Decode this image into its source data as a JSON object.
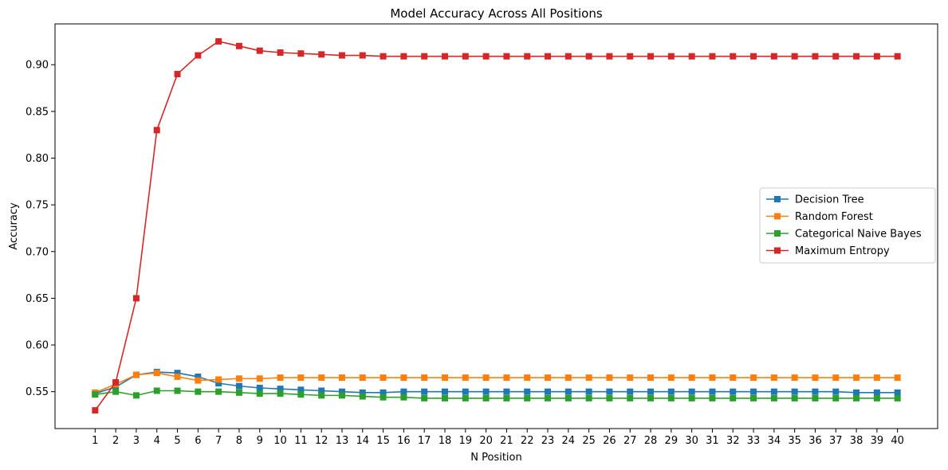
{
  "chart_data": {
    "type": "line",
    "title": "Model Accuracy Across All Positions",
    "xlabel": "N Position",
    "ylabel": "Accuracy",
    "x": [
      1,
      2,
      3,
      4,
      5,
      6,
      7,
      8,
      9,
      10,
      11,
      12,
      13,
      14,
      15,
      16,
      17,
      18,
      19,
      20,
      21,
      22,
      23,
      24,
      25,
      26,
      27,
      28,
      29,
      30,
      31,
      32,
      33,
      34,
      35,
      36,
      37,
      38,
      39,
      40
    ],
    "xlim": [
      -0.95,
      41.95
    ],
    "ylim": [
      0.5105,
      0.9437
    ],
    "yticks": [
      0.55,
      0.6,
      0.65,
      0.7,
      0.75,
      0.8,
      0.85,
      0.9
    ],
    "grid": false,
    "legend_position": "center-right",
    "marker": "square",
    "series": [
      {
        "name": "Decision Tree",
        "color": "#1f77b4",
        "values": [
          0.548,
          0.555,
          0.568,
          0.571,
          0.57,
          0.566,
          0.559,
          0.556,
          0.554,
          0.553,
          0.552,
          0.551,
          0.55,
          0.549,
          0.549,
          0.55,
          0.55,
          0.55,
          0.55,
          0.55,
          0.55,
          0.55,
          0.55,
          0.55,
          0.55,
          0.55,
          0.55,
          0.55,
          0.55,
          0.55,
          0.55,
          0.55,
          0.55,
          0.55,
          0.55,
          0.55,
          0.55,
          0.549,
          0.549,
          0.549
        ]
      },
      {
        "name": "Random Forest",
        "color": "#ff7f0e",
        "values": [
          0.549,
          0.558,
          0.568,
          0.57,
          0.566,
          0.562,
          0.563,
          0.564,
          0.564,
          0.565,
          0.565,
          0.565,
          0.565,
          0.565,
          0.565,
          0.565,
          0.565,
          0.565,
          0.565,
          0.565,
          0.565,
          0.565,
          0.565,
          0.565,
          0.565,
          0.565,
          0.565,
          0.565,
          0.565,
          0.565,
          0.565,
          0.565,
          0.565,
          0.565,
          0.565,
          0.565,
          0.565,
          0.565,
          0.565,
          0.565
        ]
      },
      {
        "name": "Categorical Naive Bayes",
        "color": "#2ca02c",
        "values": [
          0.547,
          0.55,
          0.546,
          0.551,
          0.551,
          0.55,
          0.55,
          0.549,
          0.548,
          0.548,
          0.547,
          0.546,
          0.546,
          0.545,
          0.544,
          0.544,
          0.543,
          0.543,
          0.543,
          0.543,
          0.543,
          0.543,
          0.543,
          0.543,
          0.543,
          0.543,
          0.543,
          0.543,
          0.543,
          0.543,
          0.543,
          0.543,
          0.543,
          0.543,
          0.543,
          0.543,
          0.543,
          0.543,
          0.543,
          0.543
        ]
      },
      {
        "name": "Maximum Entropy",
        "color": "#d62728",
        "values": [
          0.53,
          0.56,
          0.65,
          0.83,
          0.89,
          0.91,
          0.925,
          0.92,
          0.915,
          0.913,
          0.912,
          0.911,
          0.91,
          0.91,
          0.909,
          0.909,
          0.909,
          0.909,
          0.909,
          0.909,
          0.909,
          0.909,
          0.909,
          0.909,
          0.909,
          0.909,
          0.909,
          0.909,
          0.909,
          0.909,
          0.909,
          0.909,
          0.909,
          0.909,
          0.909,
          0.909,
          0.909,
          0.909,
          0.909,
          0.909
        ]
      }
    ]
  }
}
